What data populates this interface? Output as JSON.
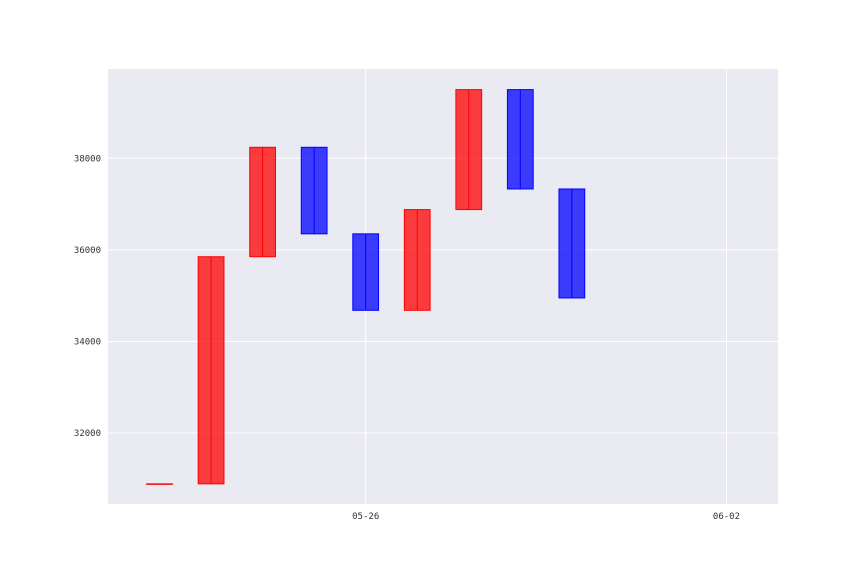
{
  "chart_data": {
    "type": "candlestick",
    "title": "",
    "xlabel": "",
    "ylabel": "",
    "grid": true,
    "x_ticks": [
      {
        "date": "2021-05-26",
        "label": "05-26"
      },
      {
        "date": "2021-06-02",
        "label": "06-02"
      }
    ],
    "y_ticks": [
      32000,
      34000,
      36000,
      38000
    ],
    "xlim": [
      "2021-05-21",
      "2021-06-03"
    ],
    "ylim": [
      30450,
      39950
    ],
    "candles": [
      {
        "date": "2021-05-22",
        "open": 30890,
        "close": 30890
      },
      {
        "date": "2021-05-23",
        "open": 30890,
        "close": 35850
      },
      {
        "date": "2021-05-24",
        "open": 35850,
        "close": 38240
      },
      {
        "date": "2021-05-25",
        "open": 38240,
        "close": 36350
      },
      {
        "date": "2021-05-26",
        "open": 36350,
        "close": 34680
      },
      {
        "date": "2021-05-27",
        "open": 34680,
        "close": 36880
      },
      {
        "date": "2021-05-28",
        "open": 36880,
        "close": 39500
      },
      {
        "date": "2021-05-29",
        "open": 39500,
        "close": 37330
      },
      {
        "date": "2021-05-30",
        "open": 37330,
        "close": 34950
      }
    ],
    "colors": {
      "up": "#ff0000",
      "down": "#0000ff",
      "background": "#eaeaf2",
      "grid": "#ffffff"
    }
  }
}
